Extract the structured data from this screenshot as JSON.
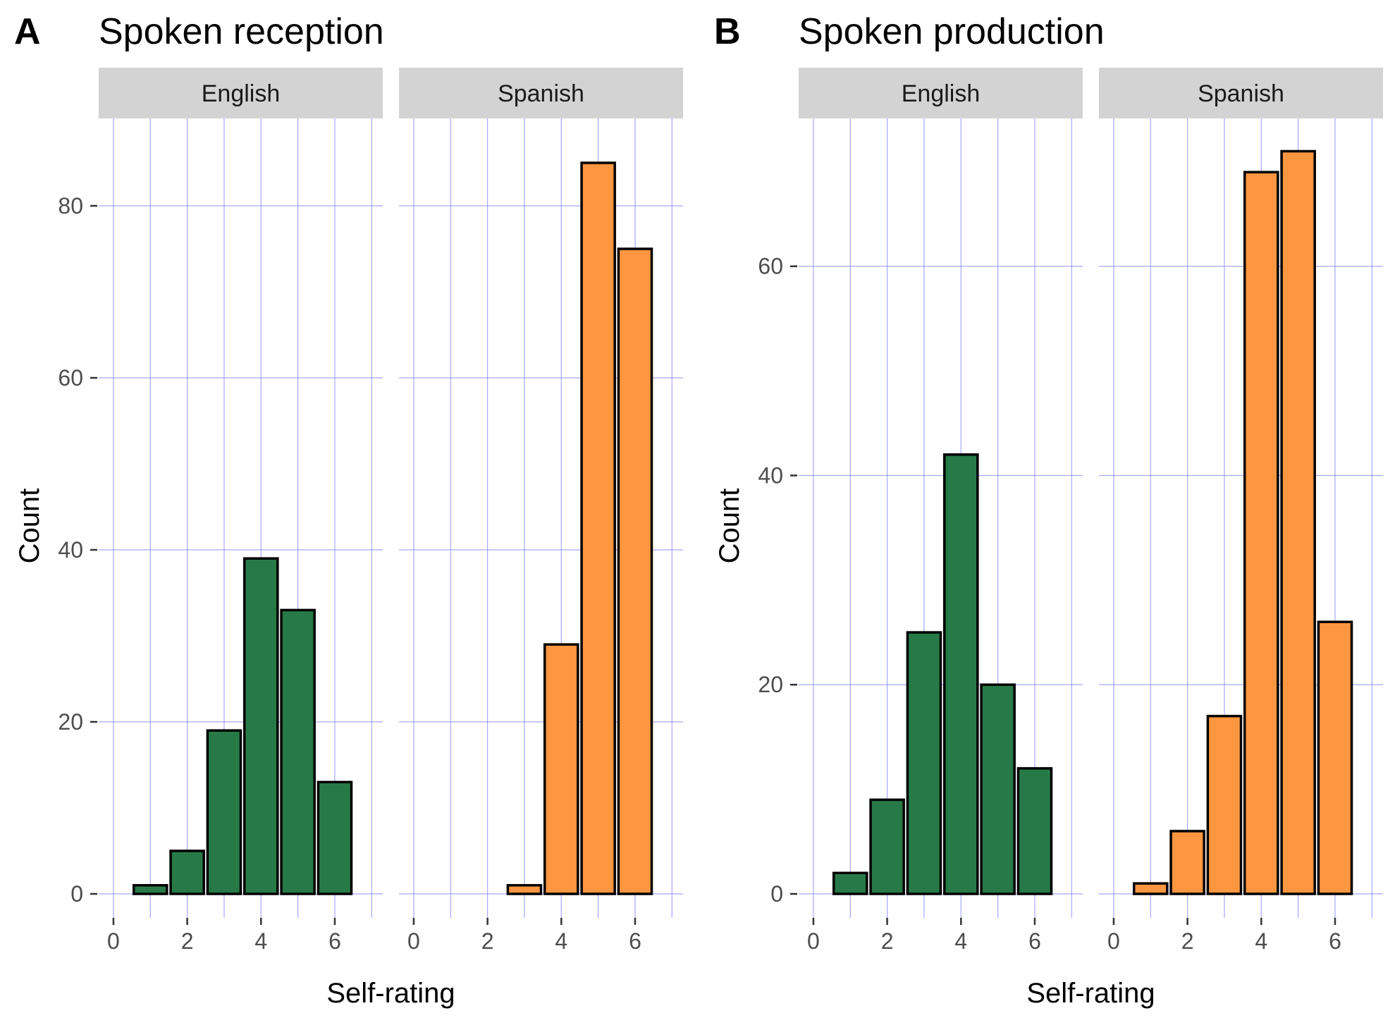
{
  "colors": {
    "English": "#277a47",
    "Spanish": "#fd9640"
  },
  "chart_data": [
    {
      "type": "bar",
      "panel": "A",
      "title": "Spoken reception",
      "xlabel": "Self-rating",
      "ylabel": "Count",
      "xlim": [
        -0.4,
        7.3
      ],
      "ylim": [
        0,
        90
      ],
      "x_ticks": [
        "0",
        "2",
        "4",
        "6"
      ],
      "y_ticks": [
        "0",
        "20",
        "40",
        "60",
        "80"
      ],
      "facets": [
        {
          "name": "English",
          "x": [
            1,
            2,
            3,
            4,
            5,
            6
          ],
          "values": [
            1,
            5,
            19,
            39,
            33,
            13
          ]
        },
        {
          "name": "Spanish",
          "x": [
            1,
            2,
            3,
            4,
            5,
            6
          ],
          "values": [
            0,
            0,
            1,
            29,
            85,
            75
          ]
        }
      ]
    },
    {
      "type": "bar",
      "panel": "B",
      "title": "Spoken production",
      "xlabel": "Self-rating",
      "ylabel": "Count",
      "xlim": [
        -0.4,
        7.3
      ],
      "ylim": [
        0,
        74
      ],
      "x_ticks": [
        "0",
        "2",
        "4",
        "6"
      ],
      "y_ticks": [
        "0",
        "20",
        "40",
        "60"
      ],
      "facets": [
        {
          "name": "English",
          "x": [
            1,
            2,
            3,
            4,
            5,
            6
          ],
          "values": [
            2,
            9,
            25,
            42,
            20,
            12
          ]
        },
        {
          "name": "Spanish",
          "x": [
            1,
            2,
            3,
            4,
            5,
            6
          ],
          "values": [
            1,
            6,
            17,
            69,
            71,
            26
          ]
        }
      ]
    }
  ]
}
